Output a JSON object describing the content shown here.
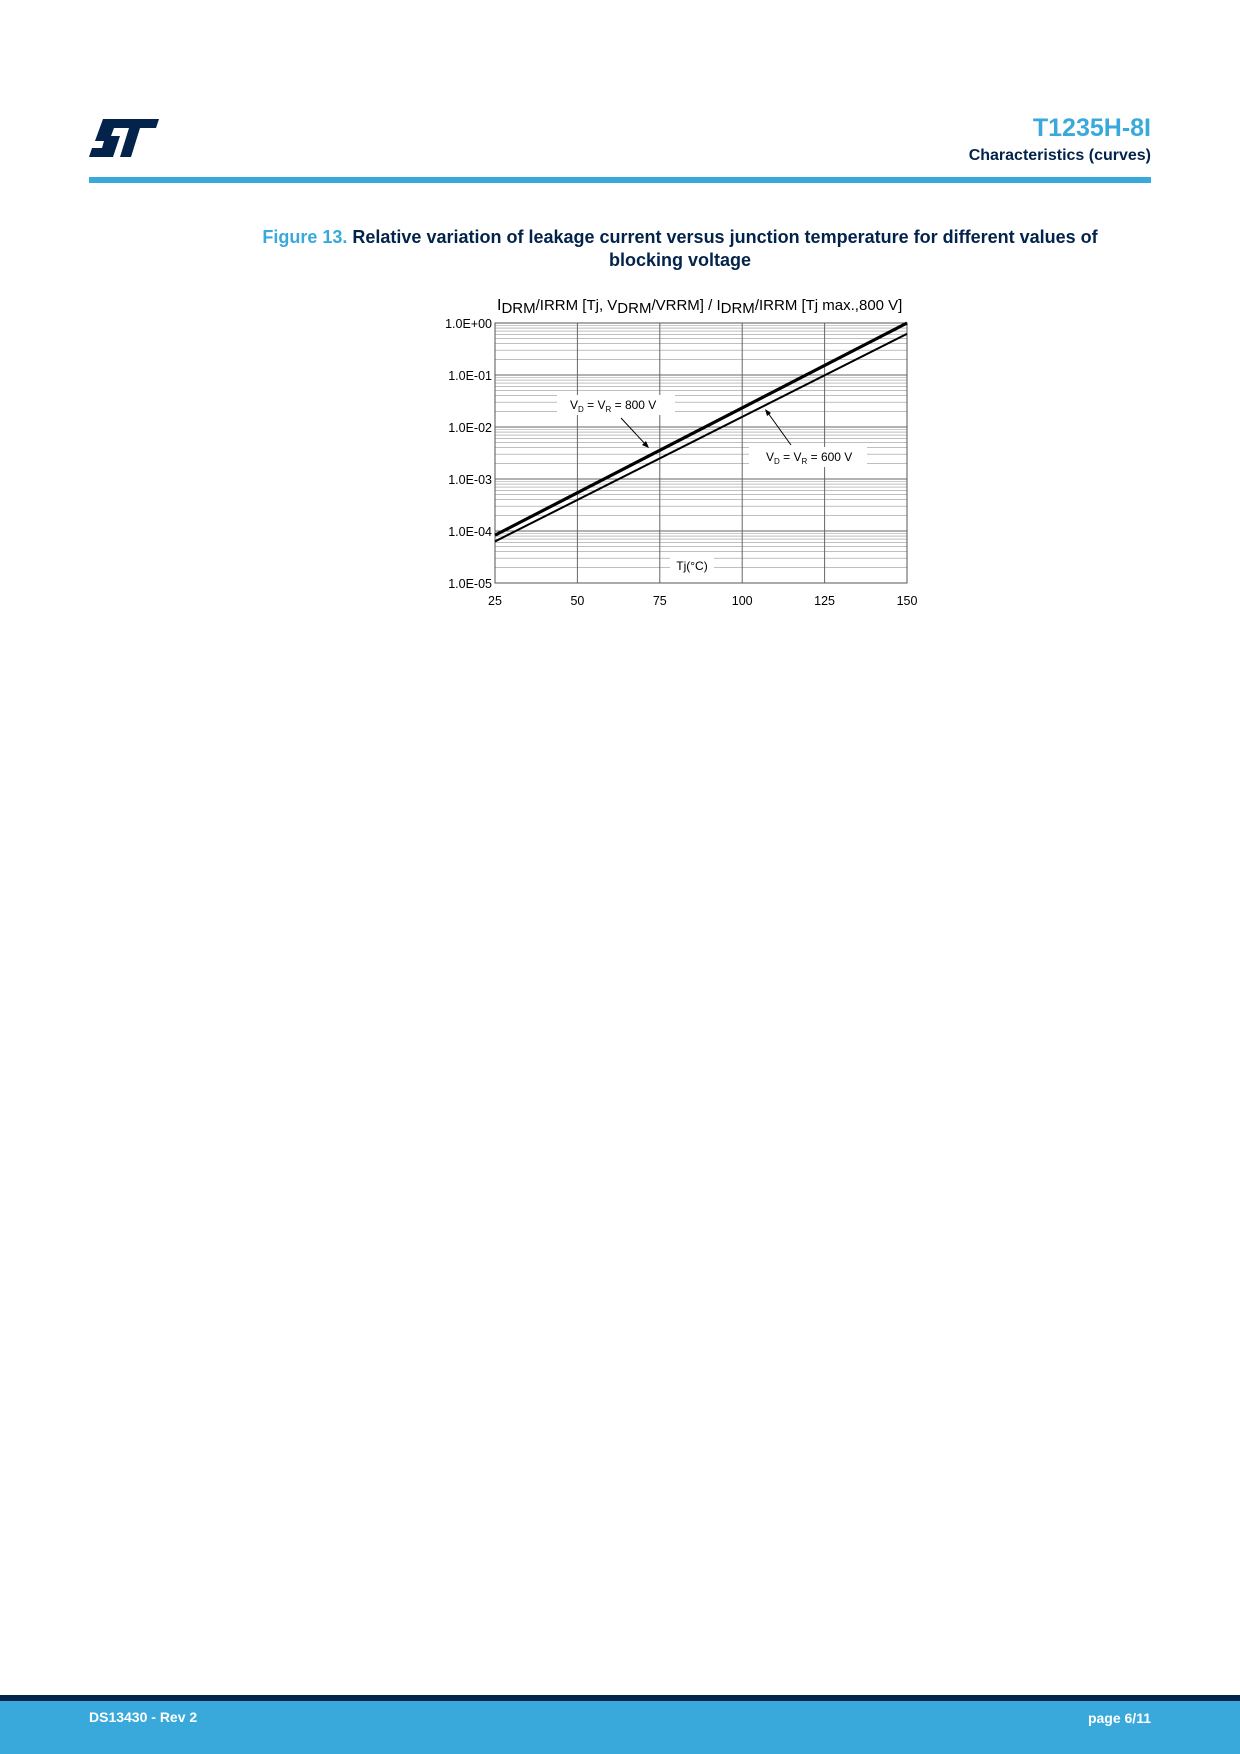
{
  "header": {
    "logo_text": "ST",
    "title": "T1235H-8I",
    "subtitle": "Characteristics (curves)"
  },
  "caption": {
    "label": "Figure 13.",
    "text": "Relative variation of leakage current versus junction temperature for different values of blocking voltage"
  },
  "chart_data": {
    "type": "line",
    "title": "IDRM/IRRM [Tj, VDRM/VRRM] / IDRM/IRRM [Tj max.,800 V]",
    "xlabel": "Tj(°C)",
    "ylabel": "",
    "xlim": [
      25,
      150
    ],
    "ylim": [
      1e-05,
      1
    ],
    "yscale": "log",
    "grid": true,
    "x_ticks": [
      "25",
      "50",
      "75",
      "100",
      "125",
      "150"
    ],
    "y_ticks": [
      "1.0E-05",
      "1.0E-04",
      "1.0E-03",
      "1.0E-02",
      "1.0E-01",
      "1.0E+00"
    ],
    "series": [
      {
        "name": "VD = VR = 800 V",
        "x": [
          25,
          150
        ],
        "y": [
          8.3e-05,
          1.0
        ],
        "color": "#000000"
      },
      {
        "name": "VD = VR = 600 V",
        "x": [
          25,
          150
        ],
        "y": [
          6.3e-05,
          0.62
        ],
        "color": "#000000"
      }
    ]
  },
  "footer": {
    "doc_id": "DS13430 - Rev 2",
    "page": "page 6/11"
  },
  "colors": {
    "brand_blue": "#39a9dc",
    "brand_dark": "#03234b"
  }
}
